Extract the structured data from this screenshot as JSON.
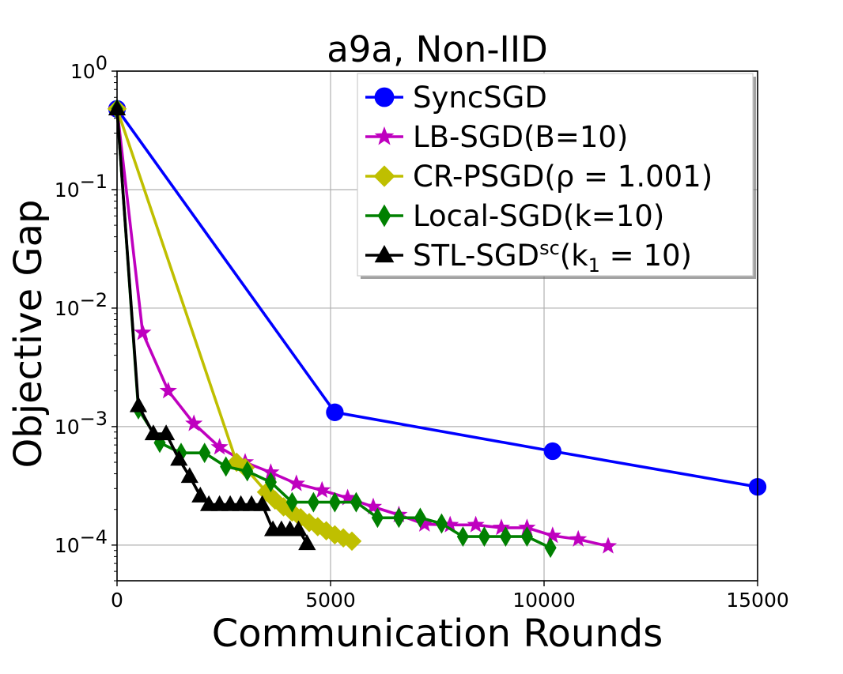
{
  "chart_data": {
    "type": "line",
    "title": "a9a, Non-IID",
    "xlabel": "Communication Rounds",
    "ylabel": "Objective Gap",
    "xlim": [
      0,
      15000
    ],
    "ylim": [
      5e-05,
      1
    ],
    "yscale": "log",
    "grid": true,
    "legend_position": "top-right",
    "x_ticks": [
      {
        "value": 0,
        "label": "0"
      },
      {
        "value": 5000,
        "label": "5000"
      },
      {
        "value": 10000,
        "label": "10000"
      },
      {
        "value": 15000,
        "label": "15000"
      }
    ],
    "y_ticks": [
      {
        "value": 1,
        "base": "10",
        "exp": "0"
      },
      {
        "value": 0.1,
        "base": "10",
        "exp": "−1"
      },
      {
        "value": 0.01,
        "base": "10",
        "exp": "−2"
      },
      {
        "value": 0.001,
        "base": "10",
        "exp": "−3"
      },
      {
        "value": 0.0001,
        "base": "10",
        "exp": "−4"
      }
    ],
    "series": [
      {
        "name": "SyncSGD",
        "legend": {
          "main": "SyncSGD"
        },
        "color": "#0000ff",
        "marker": "circle",
        "x": [
          0,
          5100,
          10200,
          15000
        ],
        "y": [
          0.48,
          0.00132,
          0.00062,
          0.00031
        ]
      },
      {
        "name": "LB-SGD(B=10)",
        "legend": {
          "main": "LB-SGD(B=10)"
        },
        "color": "#bf00bf",
        "marker": "star",
        "x": [
          0,
          600,
          1200,
          1800,
          2400,
          3000,
          3600,
          4200,
          4800,
          5400,
          6000,
          6600,
          7200,
          7800,
          8400,
          9000,
          9600,
          10200,
          10800,
          11500
        ],
        "y": [
          0.48,
          0.0062,
          0.002,
          0.00106,
          0.00067,
          0.0005,
          0.00041,
          0.00033,
          0.00029,
          0.00025,
          0.00021,
          0.00018,
          0.00015,
          0.000148,
          0.000148,
          0.00014,
          0.00014,
          0.00012,
          0.000112,
          9.8e-05
        ]
      },
      {
        "name": "CR-PSGD(ρ = 1.001)",
        "legend": {
          "main": "CR-PSGD(ρ = 1.001)"
        },
        "color": "#bfbf00",
        "marker": "diamond",
        "x": [
          0,
          2800,
          3000,
          3500,
          3700,
          3900,
          4100,
          4300,
          4500,
          4700,
          4900,
          5100,
          5300,
          5500
        ],
        "y": [
          0.48,
          0.0005,
          0.00045,
          0.00028,
          0.00024,
          0.00021,
          0.00019,
          0.00017,
          0.000155,
          0.000143,
          0.000132,
          0.000122,
          0.000115,
          0.000108
        ]
      },
      {
        "name": "Local-SGD(k=10)",
        "legend": {
          "main": "Local-SGD(k=10)"
        },
        "color": "#008000",
        "marker": "thin_diamond",
        "x": [
          0,
          500,
          1000,
          1500,
          2050,
          2550,
          3050,
          3600,
          4100,
          4600,
          5100,
          5600,
          6100,
          6600,
          7100,
          7600,
          8100,
          8600,
          9100,
          9600,
          10150
        ],
        "y": [
          0.48,
          0.0014,
          0.00073,
          0.0006,
          0.0006,
          0.00046,
          0.00042,
          0.00034,
          0.00023,
          0.00023,
          0.00023,
          0.00023,
          0.00017,
          0.00017,
          0.00017,
          0.000152,
          0.000118,
          0.000118,
          0.000118,
          0.000118,
          9.5e-05
        ]
      },
      {
        "name": "STL-SGDsc(k1 = 10)",
        "legend": {
          "main": "STL-SGD",
          "sup": "sc",
          "after_sup": "(k",
          "sub": "1",
          "after_sub": " = 10)"
        },
        "color": "#000000",
        "marker": "triangle",
        "x": [
          0,
          500,
          850,
          1150,
          1450,
          1700,
          1950,
          2150,
          2400,
          2650,
          2900,
          3150,
          3400,
          3650,
          3850,
          4050,
          4250,
          4450
        ],
        "y": [
          0.48,
          0.0015,
          0.00087,
          0.00087,
          0.00053,
          0.00038,
          0.00026,
          0.00022,
          0.00022,
          0.00022,
          0.00022,
          0.00022,
          0.00022,
          0.000135,
          0.000135,
          0.000135,
          0.000135,
          0.000103
        ]
      }
    ]
  }
}
